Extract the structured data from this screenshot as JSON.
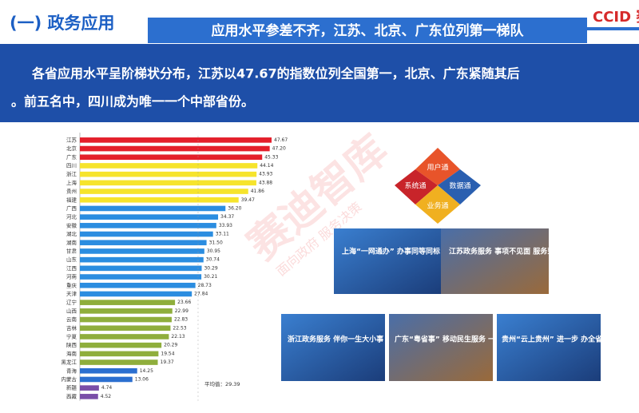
{
  "header": {
    "section": "(一) 政务应用",
    "title": "应用水平参差不齐，江苏、北京、广东位列第一梯队",
    "logo": "CCID 赛迪"
  },
  "intro": [
    "各省应用水平呈阶梯状分布，江苏以47.67的指数位列全国第一，北京、广东紧随其后",
    "。前五名中，四川成为唯一一个中部省份。"
  ],
  "watermark": {
    "main": "赛迪智库",
    "sub": "面向政府 服务决策"
  },
  "chart_data": {
    "type": "bar",
    "orientation": "horizontal",
    "categories": [
      "江苏",
      "北京",
      "广东",
      "四川",
      "浙江",
      "上海",
      "贵州",
      "福建",
      "广西",
      "河北",
      "安徽",
      "湖北",
      "湖南",
      "甘肃",
      "山东",
      "江西",
      "河南",
      "重庆",
      "天津",
      "辽宁",
      "山西",
      "云南",
      "吉林",
      "宁夏",
      "陕西",
      "海南",
      "黑龙江",
      "青海",
      "内蒙古",
      "新疆",
      "西藏"
    ],
    "values": [
      47.67,
      47.2,
      45.33,
      44.14,
      43.93,
      43.88,
      41.86,
      39.47,
      36.2,
      34.37,
      33.93,
      33.11,
      31.5,
      30.95,
      30.74,
      30.29,
      30.21,
      28.73,
      27.84,
      23.66,
      22.99,
      22.83,
      22.53,
      22.13,
      20.29,
      19.54,
      19.37,
      14.25,
      13.06,
      4.74,
      4.52
    ],
    "value_labels": [
      "47.67",
      "47.20",
      "45.33",
      "44.14",
      "43.93",
      "43.88",
      "41.86",
      "39.47",
      "36.20",
      "34.37",
      "33.93",
      "33.11",
      "31.50",
      "30.95",
      "30.74",
      "30.29",
      "30.21",
      "28.73",
      "27.84",
      "23.66",
      "22.99",
      "22.83",
      "22.53",
      "22.13",
      "20.29",
      "19.54",
      "19.37",
      "14.25",
      "13.06",
      "4.74",
      "4.52"
    ],
    "colors": [
      "#e41f2b",
      "#e41f2b",
      "#e41f2b",
      "#f6e42c",
      "#f6e42c",
      "#f6e42c",
      "#f6e42c",
      "#f6e42c",
      "#2b8de0",
      "#2b8de0",
      "#2b8de0",
      "#2b8de0",
      "#2b8de0",
      "#2b8de0",
      "#2b8de0",
      "#2b8de0",
      "#2b8de0",
      "#2b8de0",
      "#2b8de0",
      "#8fae3c",
      "#8fae3c",
      "#8fae3c",
      "#8fae3c",
      "#8fae3c",
      "#8fae3c",
      "#8fae3c",
      "#8fae3c",
      "#2b6fd0",
      "#2b6fd0",
      "#7a4ea8",
      "#7a4ea8"
    ],
    "average": 29.39,
    "average_label": "平均值：29.39"
  },
  "hub": [
    "用户通",
    "系统通",
    "数据通",
    "业务通"
  ],
  "cards": [
    "上海“一网通办” 办事同等同标 一样方便",
    "江苏政务服务 事项不见面 服务到家",
    "浙江政务服务 伴你一生大小事",
    "广东“粤省事” 移动民生服务 一站式 更省事",
    "贵州“云上贵州” 进一步 办全省事"
  ]
}
